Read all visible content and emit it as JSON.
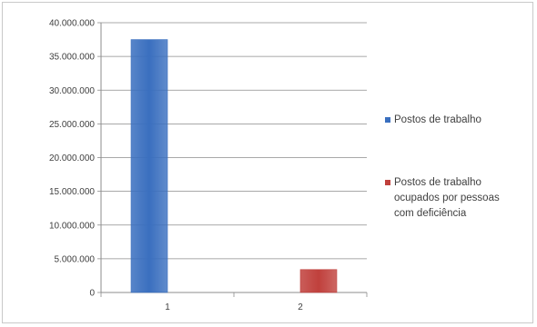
{
  "chart_data": {
    "type": "bar",
    "categories": [
      "1",
      "2"
    ],
    "series": [
      {
        "name": "Postos de trabalho",
        "color": "#3a6fbf",
        "values": [
          37500000,
          null
        ]
      },
      {
        "name": "Postos de trabalho ocupados por pessoas com deficiência",
        "color": "#c0403c",
        "values": [
          null,
          3400000
        ]
      }
    ],
    "ylim": [
      0,
      40000000
    ],
    "yticks": [
      "0",
      "5.000.000",
      "10.000.000",
      "15.000.000",
      "20.000.000",
      "25.000.000",
      "30.000.000",
      "35.000.000",
      "40.000.000"
    ],
    "grid": true,
    "legend_position": "right",
    "legend": [
      {
        "lines": [
          "Postos de trabalho"
        ],
        "color": "#3a6fbf"
      },
      {
        "lines": [
          "Postos de trabalho",
          "ocupados por pessoas",
          "com deficiência"
        ],
        "color": "#c0403c"
      }
    ]
  }
}
